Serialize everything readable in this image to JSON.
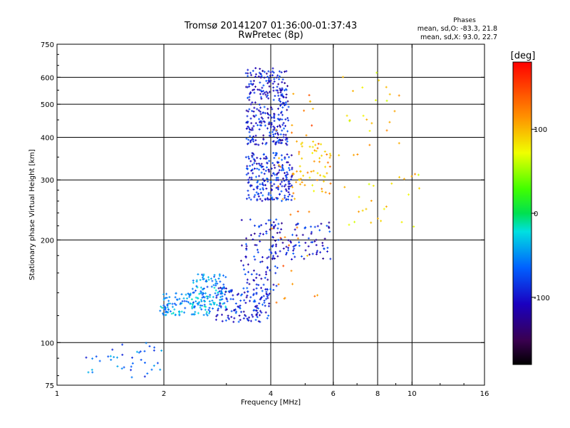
{
  "chart_data": {
    "type": "scatter",
    "title": "Tromsø 20141207 01:36:00-01:37:43",
    "subtitle": "RwPretec (8p)",
    "xlabel": "Frequency [MHz]",
    "ylabel": "Stationary phase Virtual Height [km]",
    "x_scale": "log",
    "y_scale": "log",
    "xlim": [
      1,
      16
    ],
    "ylim": [
      75,
      750
    ],
    "x_ticks": [
      1,
      2,
      4,
      6,
      8,
      10,
      16
    ],
    "x_tick_labels": [
      "1",
      "2",
      "4",
      "6",
      "8",
      "10",
      "16"
    ],
    "y_ticks": [
      75,
      100,
      200,
      300,
      400,
      500,
      600,
      750
    ],
    "y_tick_labels": [
      "75",
      "100",
      "200",
      "300",
      "400",
      "500",
      "600",
      "750"
    ],
    "grid": true,
    "stats": {
      "heading": "Phases",
      "o_line": "mean, sd,O: -83.3, 21.8",
      "x_line": "mean, sd,X:  93.0, 22.7"
    },
    "colorbar": {
      "label": "[deg]",
      "range": [
        -180,
        180
      ],
      "ticks": [
        100,
        0,
        -100
      ],
      "tick_labels": [
        "100",
        "0",
        "-100"
      ]
    },
    "clusters": [
      {
        "name": "low-frequency scatter",
        "fmin": 1.2,
        "fmax": 2.0,
        "hmin": 78,
        "hmax": 100,
        "phase": -70,
        "count": 40
      },
      {
        "name": "E-layer trace low",
        "fmin": 1.95,
        "fmax": 2.7,
        "hmin": 120,
        "hmax": 140,
        "phase": -50,
        "count": 120
      },
      {
        "name": "E-layer trace rise",
        "fmin": 2.4,
        "fmax": 3.0,
        "hmin": 125,
        "hmax": 160,
        "phase": -55,
        "count": 100
      },
      {
        "name": "E-layer trace upper",
        "fmin": 2.8,
        "fmax": 4.0,
        "hmin": 115,
        "hmax": 145,
        "phase": -95,
        "count": 140
      },
      {
        "name": "F1 cusp",
        "fmin": 3.3,
        "fmax": 4.2,
        "hmin": 140,
        "hmax": 230,
        "phase": -100,
        "count": 90
      },
      {
        "name": "F2 lower body",
        "fmin": 3.4,
        "fmax": 4.6,
        "hmin": 260,
        "hmax": 360,
        "phase": -95,
        "count": 220
      },
      {
        "name": "F2 upper body",
        "fmin": 3.4,
        "fmax": 4.5,
        "hmin": 380,
        "hmax": 640,
        "phase": -100,
        "count": 300
      },
      {
        "name": "F1 trace",
        "fmin": 4.0,
        "fmax": 5.9,
        "hmin": 175,
        "hmax": 225,
        "phase": -100,
        "count": 90
      },
      {
        "name": "X-mode F2 trace",
        "fmin": 4.6,
        "fmax": 5.9,
        "hmin": 270,
        "hmax": 390,
        "phase": 100,
        "count": 60
      },
      {
        "name": "X-mode sparse",
        "fmin": 4.0,
        "fmax": 5.5,
        "hmin": 130,
        "hmax": 560,
        "phase": 120,
        "count": 40
      },
      {
        "name": "high-frequency scatter",
        "fmin": 6.2,
        "fmax": 10.5,
        "hmin": 200,
        "hmax": 620,
        "phase": 90,
        "count": 50
      }
    ]
  }
}
